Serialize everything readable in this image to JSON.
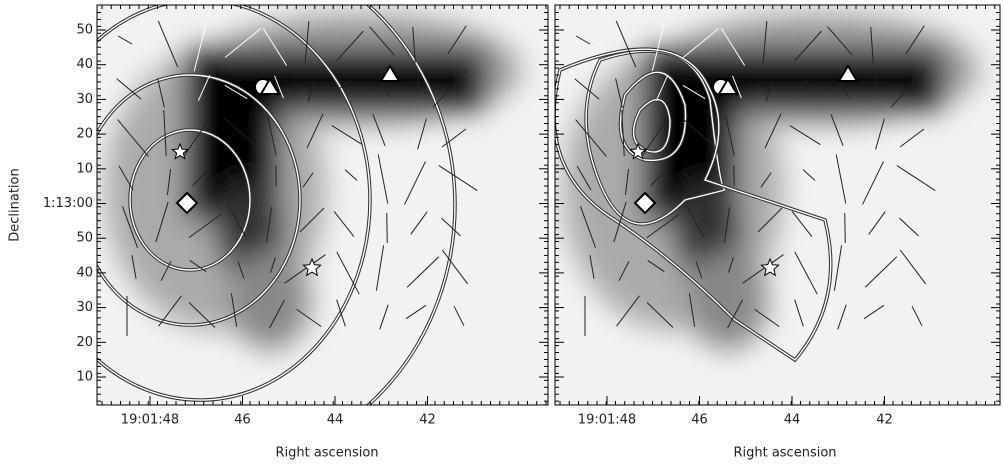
{
  "figure": {
    "ylabel": "Declination",
    "yticks": [
      "50",
      "40",
      "30",
      "20",
      "10",
      "1:13:00",
      "50",
      "40",
      "30",
      "20",
      "10"
    ],
    "panels": [
      {
        "xlabel": "Right ascension",
        "xticks": [
          "19:01:48",
          "46",
          "44",
          "42"
        ]
      },
      {
        "xlabel": "Right ascension",
        "xticks": [
          "19:01:48",
          "46",
          "44",
          "42"
        ]
      }
    ]
  }
}
